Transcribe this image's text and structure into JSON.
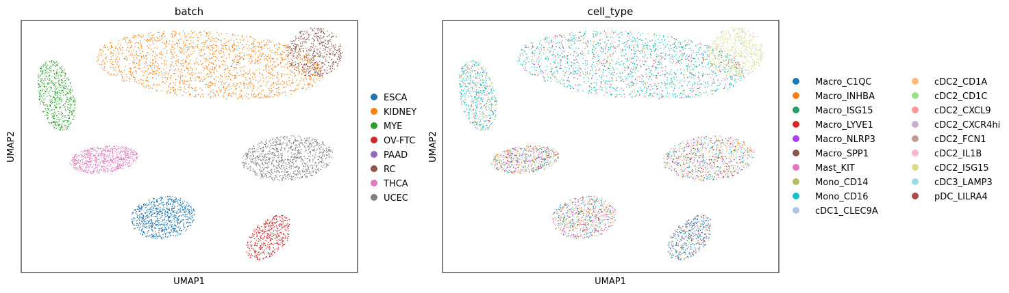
{
  "chart_data": [
    {
      "type": "scatter",
      "title": "batch",
      "xlabel": "UMAP1",
      "ylabel": "UMAP2",
      "grid": false,
      "legend_placement": "right",
      "series": [
        {
          "name": "ESCA",
          "color": "#1f77b4"
        },
        {
          "name": "KIDNEY",
          "color": "#ff7f0e"
        },
        {
          "name": "MYE",
          "color": "#2ca02c"
        },
        {
          "name": "OV-FTC",
          "color": "#d62728"
        },
        {
          "name": "PAAD",
          "color": "#9467bd"
        },
        {
          "name": "RC",
          "color": "#8c564b"
        },
        {
          "name": "THCA",
          "color": "#e377c2"
        },
        {
          "name": "UCEC",
          "color": "#7f7f7f"
        }
      ],
      "clusters": [
        {
          "series": "MYE",
          "cx": 0.103,
          "cy": 0.705,
          "rx": 0.055,
          "ry": 0.145,
          "rot": 8,
          "n": 520
        },
        {
          "series": "KIDNEY",
          "cx": 0.56,
          "cy": 0.825,
          "rx": 0.35,
          "ry": 0.135,
          "rot": -6,
          "n": 1700
        },
        {
          "series": "RC",
          "cx": 0.872,
          "cy": 0.875,
          "rx": 0.085,
          "ry": 0.1,
          "rot": 0,
          "n": 500
        },
        {
          "series": "THCA",
          "cx": 0.245,
          "cy": 0.45,
          "rx": 0.105,
          "ry": 0.055,
          "rot": 10,
          "n": 650
        },
        {
          "series": "UCEC",
          "cx": 0.79,
          "cy": 0.455,
          "rx": 0.14,
          "ry": 0.09,
          "rot": 8,
          "n": 900
        },
        {
          "series": "ESCA",
          "cx": 0.42,
          "cy": 0.22,
          "rx": 0.1,
          "ry": 0.085,
          "rot": 20,
          "n": 750
        },
        {
          "series": "OV-FTC",
          "cx": 0.735,
          "cy": 0.14,
          "rx": 0.055,
          "ry": 0.1,
          "rot": -30,
          "n": 400
        }
      ]
    },
    {
      "type": "scatter",
      "title": "cell_type",
      "xlabel": "UMAP1",
      "ylabel": "UMAP2",
      "grid": false,
      "legend_placement": "right",
      "series": [
        {
          "name": "Macro_C1QC",
          "color": "#1f77b4"
        },
        {
          "name": "Macro_INHBA",
          "color": "#ff7f0e"
        },
        {
          "name": "Macro_ISG15",
          "color": "#279e68"
        },
        {
          "name": "Macro_LYVE1",
          "color": "#d62728"
        },
        {
          "name": "Macro_NLRP3",
          "color": "#aa40fc"
        },
        {
          "name": "Macro_SPP1",
          "color": "#8c564b"
        },
        {
          "name": "Mast_KIT",
          "color": "#e377c2"
        },
        {
          "name": "Mono_CD14",
          "color": "#b5bd61"
        },
        {
          "name": "Mono_CD16",
          "color": "#17becf"
        },
        {
          "name": "cDC1_CLEC9A",
          "color": "#aec7e8"
        },
        {
          "name": "cDC2_CD1A",
          "color": "#ffbb78"
        },
        {
          "name": "cDC2_CD1C",
          "color": "#98df8a"
        },
        {
          "name": "cDC2_CXCL9",
          "color": "#ff9896"
        },
        {
          "name": "cDC2_CXCR4hi",
          "color": "#c5b0d5"
        },
        {
          "name": "cDC2_FCN1",
          "color": "#c49c94"
        },
        {
          "name": "cDC2_IL1B",
          "color": "#f7b6d2"
        },
        {
          "name": "cDC2_ISG15",
          "color": "#dbdb8d"
        },
        {
          "name": "cDC3_LAMP3",
          "color": "#9edae5"
        },
        {
          "name": "pDC_LILRA4",
          "color": "#ad494a"
        }
      ]
    }
  ]
}
